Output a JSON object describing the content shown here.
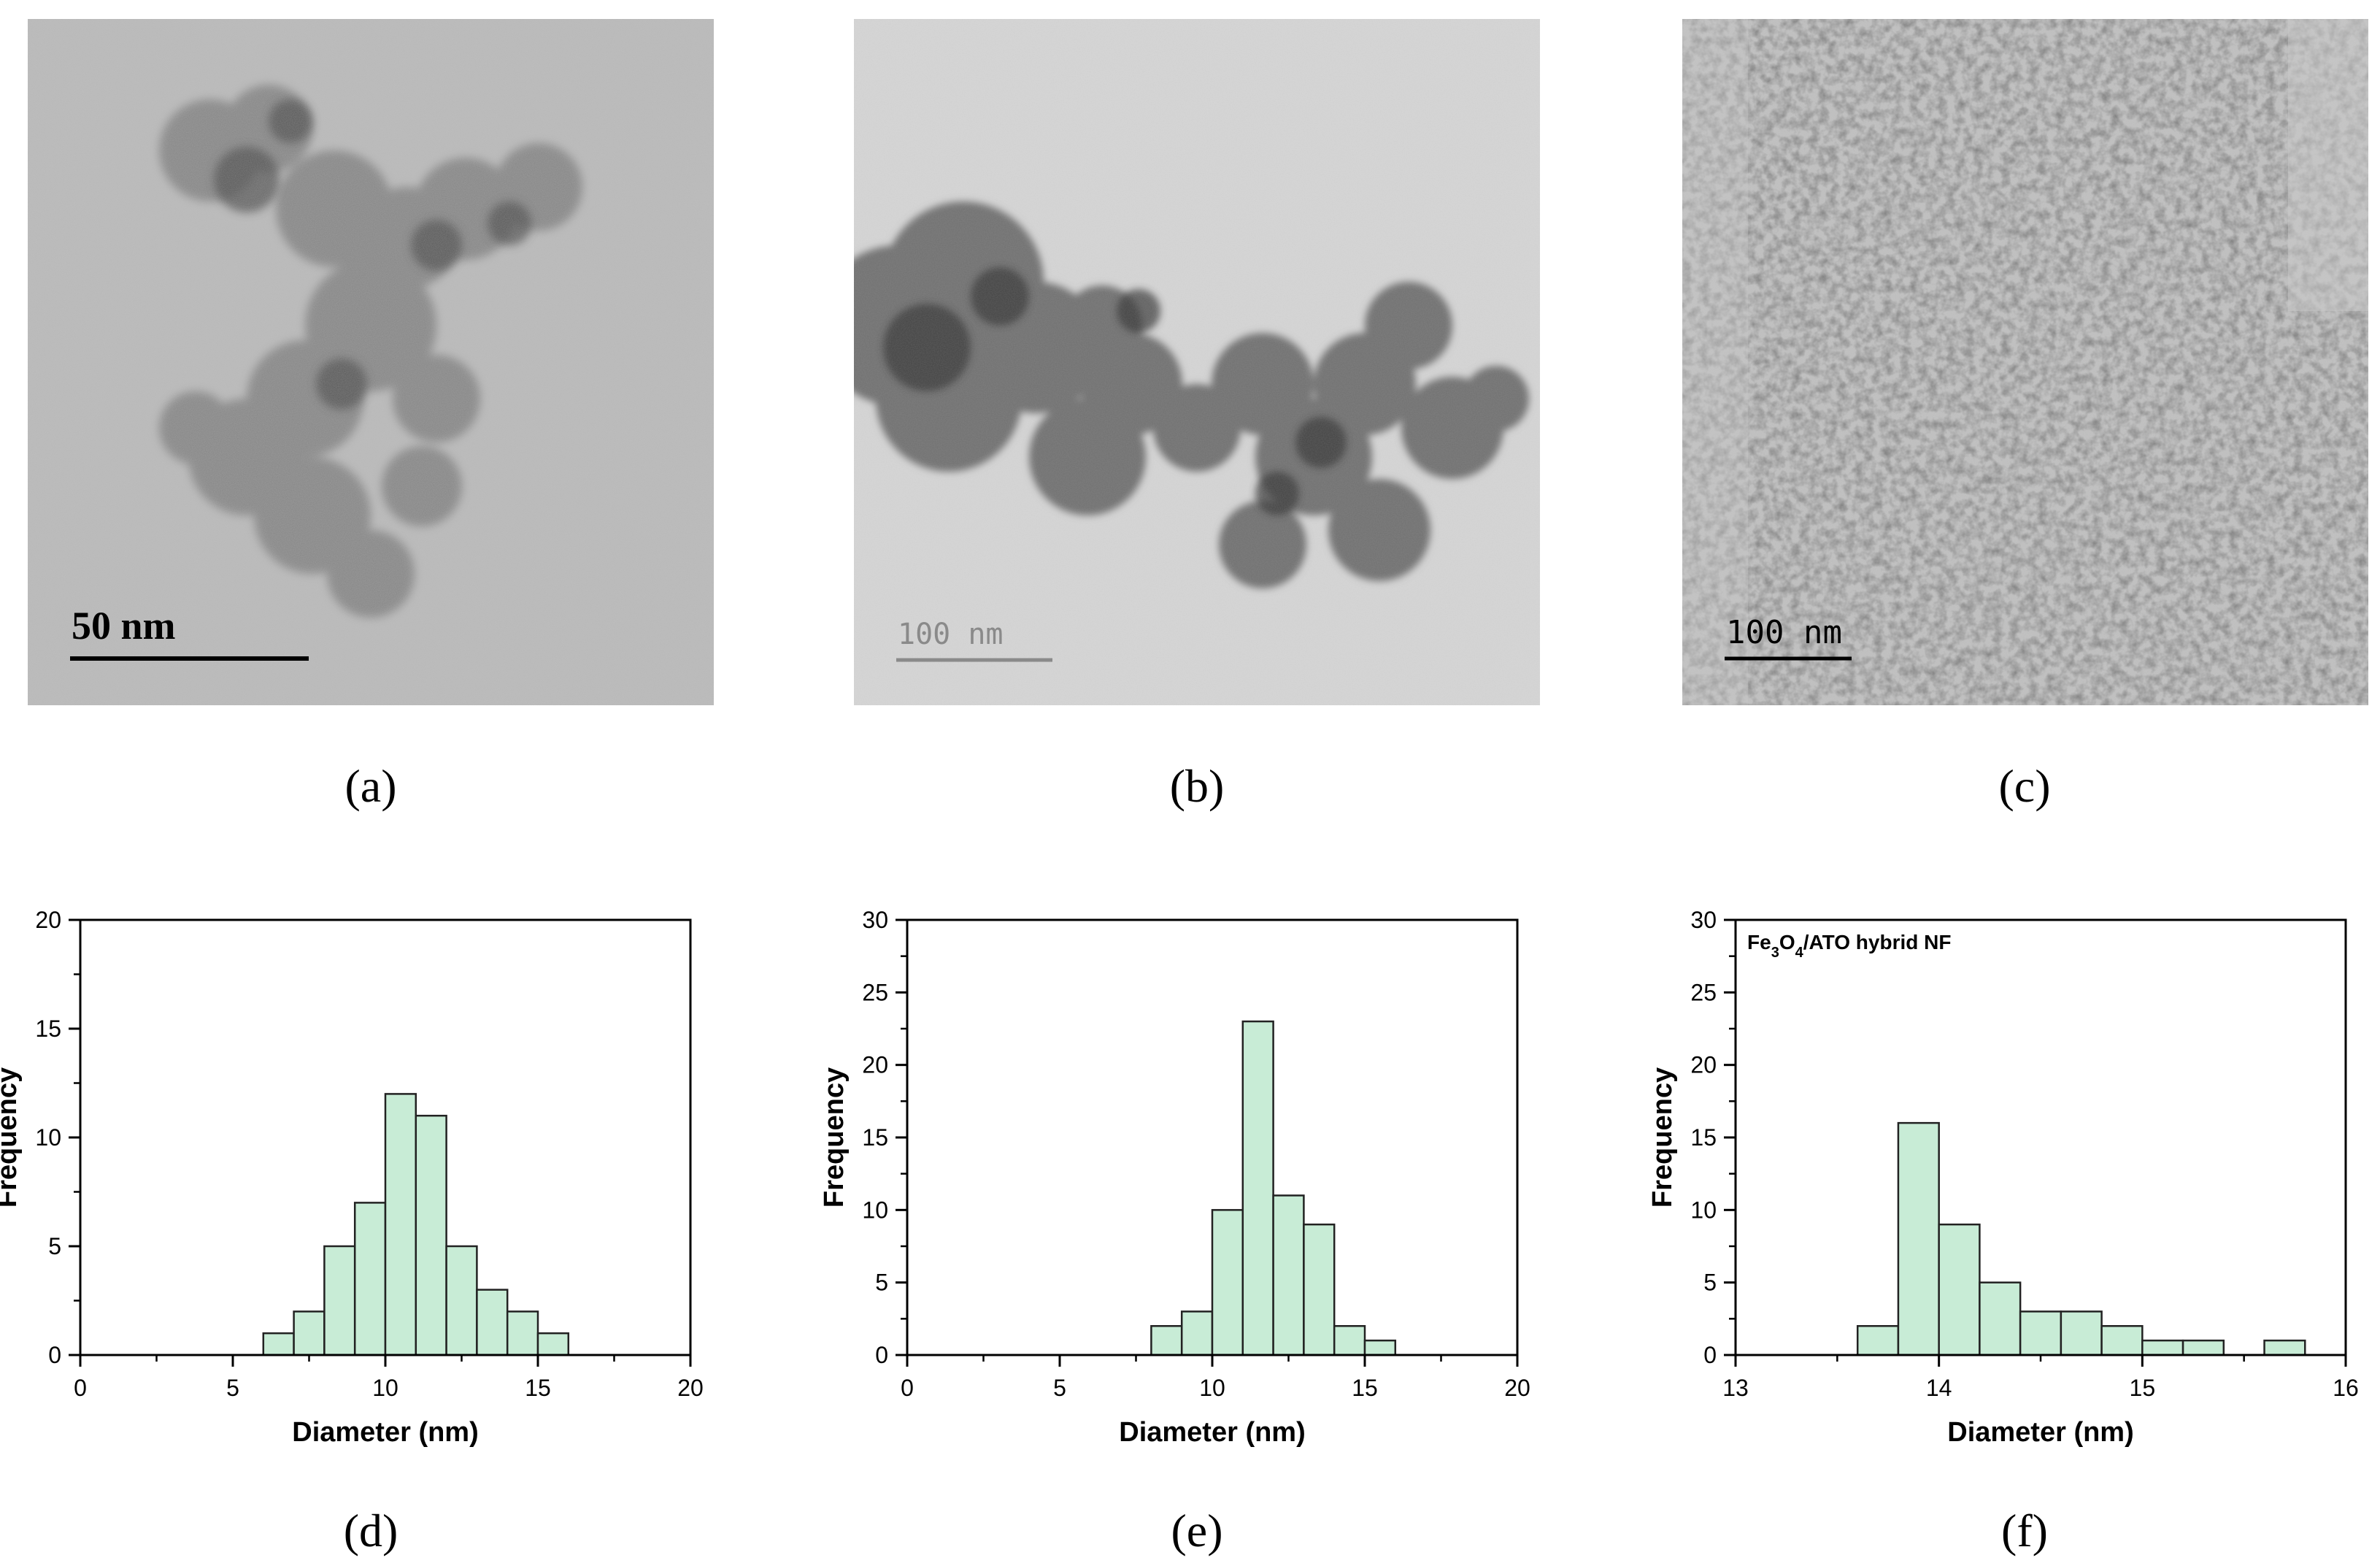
{
  "tem_panels": [
    {
      "label": "(a)",
      "scale_bar": "50 nm"
    },
    {
      "label": "(b)",
      "scale_bar": "100 nm"
    },
    {
      "label": "(c)",
      "scale_bar": "100 nm"
    }
  ],
  "hist_labels": [
    "(d)",
    "(e)",
    "(f)"
  ],
  "colors": {
    "bar_fill": "#c8ecd6",
    "bar_stroke": "#222222",
    "axis": "#000000"
  },
  "chart_data": [
    {
      "type": "bar",
      "title": "",
      "xlabel": "Diameter (nm)",
      "ylabel": "Frequency",
      "xlim": [
        0,
        20
      ],
      "ylim": [
        0,
        20
      ],
      "xticks": [
        0,
        5,
        10,
        15,
        20
      ],
      "yticks": [
        0,
        5,
        10,
        15,
        20
      ],
      "bin_edges": [
        6,
        7,
        8,
        9,
        10,
        11,
        12,
        13,
        14,
        15,
        16
      ],
      "values": [
        1,
        2,
        5,
        7,
        12,
        11,
        5,
        3,
        2,
        1
      ]
    },
    {
      "type": "bar",
      "title": "",
      "xlabel": "Diameter (nm)",
      "ylabel": "Frequency",
      "xlim": [
        0,
        20
      ],
      "ylim": [
        0,
        30
      ],
      "xticks": [
        0,
        5,
        10,
        15,
        20
      ],
      "yticks": [
        0,
        5,
        10,
        15,
        20,
        25,
        30
      ],
      "bin_edges": [
        8,
        9,
        10,
        11,
        12,
        13,
        14,
        15,
        16
      ],
      "values": [
        2,
        3,
        10,
        23,
        11,
        9,
        2,
        1
      ]
    },
    {
      "type": "bar",
      "title": "",
      "annotation": {
        "pre": "Fe",
        "sub1": "3",
        "mid": "O",
        "sub2": "4",
        "post": "/ATO hybrid NF"
      },
      "xlabel": "Diameter (nm)",
      "ylabel": "Frequency",
      "xlim": [
        13,
        16
      ],
      "ylim": [
        0,
        30
      ],
      "xticks": [
        13,
        14,
        15,
        16
      ],
      "yticks": [
        0,
        5,
        10,
        15,
        20,
        25,
        30
      ],
      "bin_edges": [
        13.6,
        13.8,
        14.0,
        14.2,
        14.4,
        14.6,
        14.8,
        15.0,
        15.2,
        15.4,
        15.6,
        15.8
      ],
      "values": [
        2,
        16,
        9,
        5,
        3,
        3,
        2,
        1,
        1,
        0,
        1
      ]
    }
  ]
}
